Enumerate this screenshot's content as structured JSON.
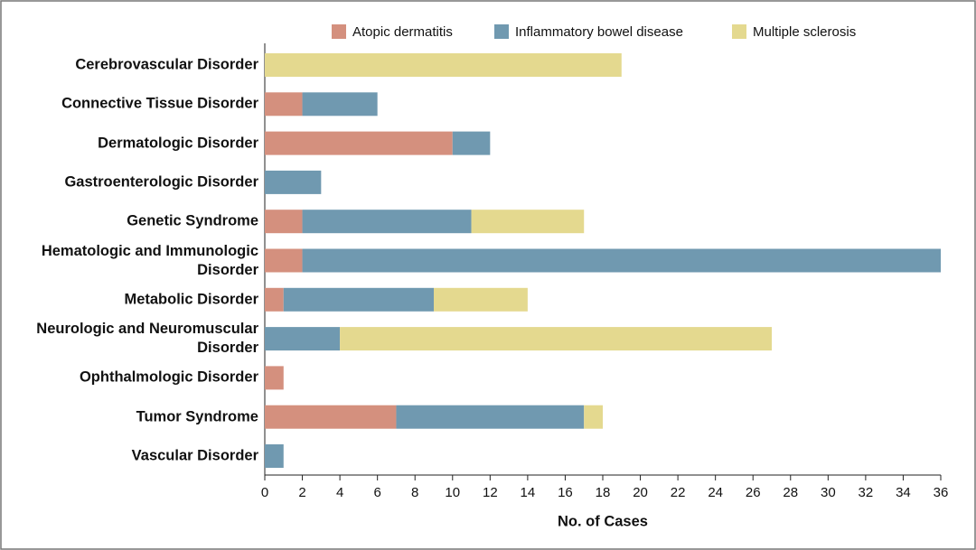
{
  "chart_data": {
    "type": "stacked-bar-horizontal",
    "x_label": "No. of Cases",
    "categories": [
      "Cerebrovascular Disorder",
      "Connective Tissue Disorder",
      "Dermatologic Disorder",
      "Gastroenterologic Disorder",
      "Genetic Syndrome",
      "Hematologic and Immunologic Disorder",
      "Metabolic Disorder",
      "Neurologic and Neuromuscular Disorder",
      "Ophthalmologic Disorder",
      "Tumor Syndrome",
      "Vascular Disorder"
    ],
    "series": [
      {
        "name": "Atopic dermatitis",
        "color": "#d4907e",
        "values": [
          0,
          2,
          10,
          0,
          2,
          2,
          1,
          0,
          1,
          7,
          0
        ]
      },
      {
        "name": "Inflammatory bowel disease",
        "color": "#7099b0",
        "values": [
          0,
          4,
          2,
          3,
          9,
          34,
          8,
          4,
          0,
          10,
          1
        ]
      },
      {
        "name": "Multiple sclerosis",
        "color": "#e4d98f",
        "values": [
          19,
          0,
          0,
          0,
          6,
          0,
          5,
          23,
          0,
          1,
          0
        ]
      }
    ],
    "xlim": [
      0,
      36
    ],
    "xticks": [
      0,
      2,
      4,
      6,
      8,
      10,
      12,
      14,
      16,
      18,
      20,
      22,
      24,
      26,
      28,
      30,
      32,
      34,
      36
    ],
    "legend": "top"
  }
}
